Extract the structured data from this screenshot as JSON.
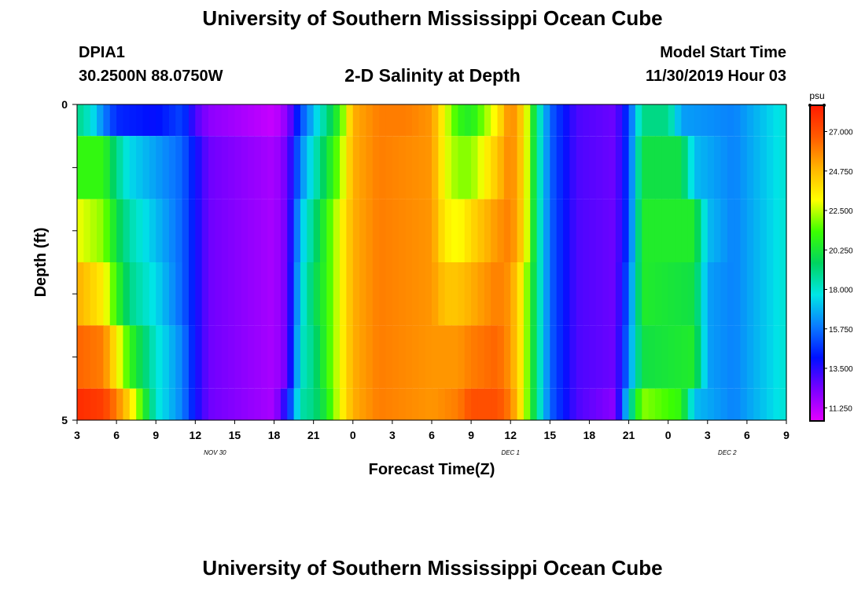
{
  "header": {
    "title": "University of Southern Mississippi Ocean Cube",
    "station_id": "DPIA1",
    "station_coords": "30.2500N 88.0750W",
    "chart_title": "2-D Salinity at Depth",
    "model_label": "Model Start Time",
    "model_time": "11/30/2019 Hour 03"
  },
  "footer": {
    "title": "University of Southern Mississippi Ocean Cube"
  },
  "chart_data": {
    "type": "heatmap",
    "title": "2-D Salinity at Depth",
    "xlabel": "Forecast Time(Z)",
    "ylabel": "Depth (ft)",
    "x_tick_labels": [
      "3",
      "6",
      "9",
      "12",
      "15",
      "18",
      "21",
      "0",
      "3",
      "6",
      "9",
      "12",
      "15",
      "18",
      "21",
      "0",
      "3",
      "6",
      "9"
    ],
    "x_range_hours": [
      0,
      54
    ],
    "day_labels": [
      {
        "label": "NOV 30",
        "at_hour": 10.5
      },
      {
        "label": "DEC 1",
        "at_hour": 33
      },
      {
        "label": "DEC 2",
        "at_hour": 49.5
      }
    ],
    "y_tick_labels": [
      "0",
      "5"
    ],
    "ylim": [
      0,
      5
    ],
    "colorbar": {
      "unit": "psu",
      "min": 10.5,
      "max": 28.5,
      "ticks": [
        "27.000",
        "24.750",
        "22.500",
        "20.250",
        "18.000",
        "15.750",
        "13.500",
        "11.250"
      ],
      "tick_values": [
        27.0,
        24.75,
        22.5,
        20.25,
        18.0,
        15.75,
        13.5,
        11.25
      ],
      "stops": [
        "#e400ff",
        "#7a00ff",
        "#0010ff",
        "#0a7cff",
        "#00e6e6",
        "#00d460",
        "#3cff00",
        "#ffff00",
        "#ffb400",
        "#ff5a00",
        "#ff1a00"
      ]
    },
    "depth_rows": [
      {
        "depth": "0-0.5",
        "anchors": [
          [
            0,
            19
          ],
          [
            1,
            18
          ],
          [
            2,
            16
          ],
          [
            3,
            14.5
          ],
          [
            6,
            14
          ],
          [
            8,
            15
          ],
          [
            9,
            13
          ],
          [
            10,
            12
          ],
          [
            15,
            11
          ],
          [
            16,
            12
          ],
          [
            17,
            15
          ],
          [
            18,
            17
          ],
          [
            19,
            19
          ],
          [
            20,
            21
          ],
          [
            21,
            25
          ],
          [
            23,
            26
          ],
          [
            25,
            26
          ],
          [
            27,
            25.5
          ],
          [
            28,
            23
          ],
          [
            29,
            21
          ],
          [
            30,
            20.5
          ],
          [
            32,
            23.5
          ],
          [
            33,
            26
          ],
          [
            34,
            24
          ],
          [
            35,
            19
          ],
          [
            36,
            15.5
          ],
          [
            38,
            13
          ],
          [
            41,
            12.5
          ],
          [
            42,
            15
          ],
          [
            43,
            19
          ],
          [
            45,
            19
          ],
          [
            46,
            16.5
          ],
          [
            50,
            16
          ],
          [
            52,
            17
          ],
          [
            54,
            18
          ]
        ]
      },
      {
        "depth": "0.5-1.5",
        "anchors": [
          [
            0,
            21
          ],
          [
            2,
            21
          ],
          [
            3,
            19
          ],
          [
            4,
            17.5
          ],
          [
            6,
            16.5
          ],
          [
            8,
            15.5
          ],
          [
            9,
            14
          ],
          [
            10,
            12.5
          ],
          [
            15,
            11.5
          ],
          [
            16,
            12.5
          ],
          [
            17,
            16
          ],
          [
            18,
            18
          ],
          [
            19,
            20
          ],
          [
            20,
            22
          ],
          [
            21,
            25
          ],
          [
            23,
            26
          ],
          [
            27,
            25.5
          ],
          [
            28,
            23
          ],
          [
            29,
            22
          ],
          [
            30,
            22
          ],
          [
            32,
            24.5
          ],
          [
            33,
            26
          ],
          [
            34,
            24
          ],
          [
            35,
            19
          ],
          [
            36,
            15.5
          ],
          [
            38,
            13
          ],
          [
            41,
            12.5
          ],
          [
            42,
            15
          ],
          [
            43,
            20
          ],
          [
            46,
            20
          ],
          [
            47,
            17
          ],
          [
            50,
            16
          ],
          [
            52,
            17
          ],
          [
            54,
            18
          ]
        ]
      },
      {
        "depth": "1.5-2.5",
        "anchors": [
          [
            0,
            23
          ],
          [
            2,
            22
          ],
          [
            3,
            20
          ],
          [
            4,
            18.5
          ],
          [
            6,
            17
          ],
          [
            8,
            15.5
          ],
          [
            9,
            14
          ],
          [
            10,
            12.5
          ],
          [
            15,
            11.5
          ],
          [
            16,
            12.5
          ],
          [
            17,
            17
          ],
          [
            18,
            19
          ],
          [
            19,
            21
          ],
          [
            20,
            23
          ],
          [
            21,
            25
          ],
          [
            23,
            26
          ],
          [
            27,
            25.5
          ],
          [
            28,
            23.5
          ],
          [
            29,
            23
          ],
          [
            30,
            24
          ],
          [
            32,
            25.5
          ],
          [
            33,
            26
          ],
          [
            34,
            24
          ],
          [
            35,
            19
          ],
          [
            36,
            15.5
          ],
          [
            38,
            13
          ],
          [
            41,
            12.5
          ],
          [
            42,
            15
          ],
          [
            43,
            20.5
          ],
          [
            47,
            20.5
          ],
          [
            48,
            17
          ],
          [
            50,
            16
          ],
          [
            52,
            17
          ],
          [
            54,
            18
          ]
        ]
      },
      {
        "depth": "2.5-3.5",
        "anchors": [
          [
            0,
            25
          ],
          [
            2,
            23.5
          ],
          [
            3,
            21
          ],
          [
            4,
            19
          ],
          [
            6,
            17.5
          ],
          [
            8,
            15.5
          ],
          [
            9,
            14
          ],
          [
            10,
            12.5
          ],
          [
            15,
            11.5
          ],
          [
            16,
            12.5
          ],
          [
            17,
            17.5
          ],
          [
            18,
            19.5
          ],
          [
            19,
            21
          ],
          [
            20,
            23
          ],
          [
            21,
            25
          ],
          [
            23,
            26
          ],
          [
            27,
            25.5
          ],
          [
            28,
            24.5
          ],
          [
            29,
            24.5
          ],
          [
            30,
            25
          ],
          [
            32,
            26
          ],
          [
            33,
            25.5
          ],
          [
            34,
            23
          ],
          [
            35,
            19
          ],
          [
            36,
            15.5
          ],
          [
            38,
            13
          ],
          [
            41,
            12.5
          ],
          [
            42,
            15.5
          ],
          [
            43,
            20.5
          ],
          [
            47,
            20
          ],
          [
            48,
            16.5
          ],
          [
            50,
            16
          ],
          [
            52,
            17
          ],
          [
            54,
            18
          ]
        ]
      },
      {
        "depth": "3.5-4.5",
        "anchors": [
          [
            0,
            26.5
          ],
          [
            2,
            26
          ],
          [
            3,
            23.5
          ],
          [
            4,
            21
          ],
          [
            6,
            18
          ],
          [
            8,
            16
          ],
          [
            9,
            14
          ],
          [
            10,
            12.5
          ],
          [
            15,
            11.5
          ],
          [
            16,
            12.5
          ],
          [
            17,
            18
          ],
          [
            18,
            19
          ],
          [
            19,
            21
          ],
          [
            20,
            23
          ],
          [
            21,
            25
          ],
          [
            23,
            26
          ],
          [
            27,
            25.5
          ],
          [
            29,
            25.5
          ],
          [
            30,
            26
          ],
          [
            32,
            26.5
          ],
          [
            33,
            25.5
          ],
          [
            34,
            23
          ],
          [
            35,
            19
          ],
          [
            36,
            15.5
          ],
          [
            38,
            13
          ],
          [
            41,
            12.5
          ],
          [
            42,
            16
          ],
          [
            43,
            20
          ],
          [
            47,
            20.5
          ],
          [
            48,
            16.5
          ],
          [
            50,
            16
          ],
          [
            52,
            17
          ],
          [
            54,
            18
          ]
        ]
      },
      {
        "depth": "4.5-5",
        "anchors": [
          [
            0,
            28
          ],
          [
            2,
            27.5
          ],
          [
            3,
            26
          ],
          [
            4,
            24
          ],
          [
            5,
            21
          ],
          [
            6,
            18
          ],
          [
            8,
            16
          ],
          [
            9,
            14
          ],
          [
            10,
            12.5
          ],
          [
            15,
            11.5
          ],
          [
            16,
            14
          ],
          [
            17,
            18.5
          ],
          [
            18,
            19
          ],
          [
            19,
            20.5
          ],
          [
            20,
            23
          ],
          [
            21,
            25
          ],
          [
            23,
            26
          ],
          [
            27,
            25.5
          ],
          [
            29,
            26
          ],
          [
            30,
            27
          ],
          [
            32,
            27
          ],
          [
            33,
            26
          ],
          [
            34,
            23
          ],
          [
            35,
            19
          ],
          [
            36,
            15.5
          ],
          [
            38,
            13
          ],
          [
            41,
            12
          ],
          [
            42,
            18
          ],
          [
            43,
            22
          ],
          [
            46,
            21
          ],
          [
            47,
            17
          ],
          [
            50,
            16
          ],
          [
            52,
            17
          ],
          [
            54,
            18
          ]
        ]
      }
    ]
  }
}
